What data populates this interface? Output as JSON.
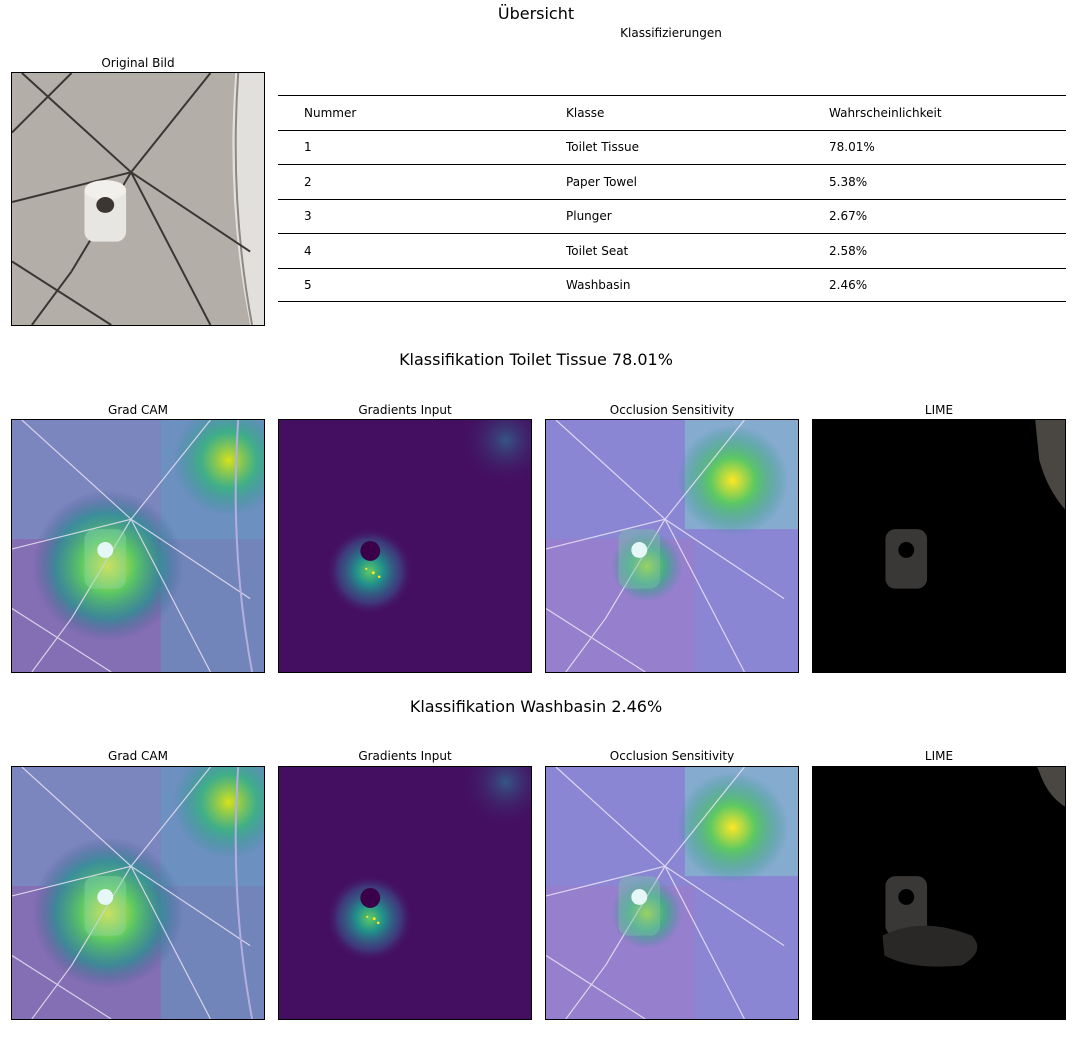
{
  "figure": {
    "title": "Übersicht",
    "table_title": "Klassifizierungen",
    "original_title": "Original Bild"
  },
  "table": {
    "headers": [
      "Nummer",
      "Klasse",
      "Wahrscheinlichkeit"
    ],
    "rows": [
      [
        "1",
        "Toilet Tissue",
        "78.01%"
      ],
      [
        "2",
        "Paper Towel",
        "5.38%"
      ],
      [
        "3",
        "Plunger",
        "2.67%"
      ],
      [
        "4",
        "Toilet Seat",
        "2.58%"
      ],
      [
        "5",
        "Washbasin",
        "2.46%"
      ]
    ]
  },
  "sections": [
    {
      "title": "Klassifikation Toilet Tissue 78.01%",
      "panels": [
        "Grad CAM",
        "Gradients Input",
        "Occlusion Sensitivity",
        "LIME"
      ]
    },
    {
      "title": "Klassifikation Washbasin 2.46%",
      "panels": [
        "Grad CAM",
        "Gradients Input",
        "Occlusion Sensitivity",
        "LIME"
      ]
    }
  ],
  "chart_data": {
    "type": "table",
    "columns": [
      "Nummer",
      "Klasse",
      "Wahrscheinlichkeit"
    ],
    "rows": [
      [
        1,
        "Toilet Tissue",
        78.01
      ],
      [
        2,
        "Paper Towel",
        5.38
      ],
      [
        3,
        "Plunger",
        2.67
      ],
      [
        4,
        "Toilet Seat",
        2.58
      ],
      [
        5,
        "Washbasin",
        2.46
      ]
    ],
    "colormap": "viridis",
    "colors": {
      "viridis_low": "#440154",
      "viridis_mid": "#21918c",
      "viridis_high": "#fde725",
      "tile": "#b7b1ab"
    }
  }
}
